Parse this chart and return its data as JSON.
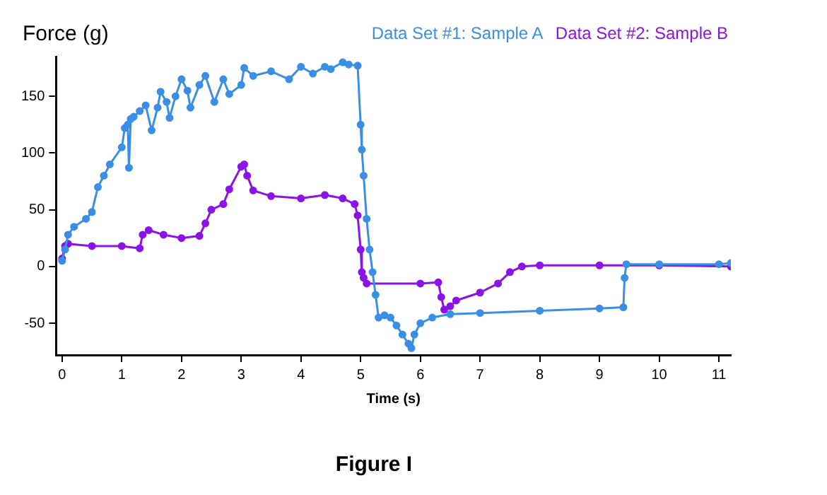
{
  "chart_data": {
    "type": "line",
    "title": "Figure I",
    "xlabel": "Time (s)",
    "ylabel": "Force (g)",
    "xlim": [
      -0.1,
      11.2
    ],
    "xticks": [
      0,
      1,
      2,
      3,
      4,
      5,
      6,
      7,
      8,
      9,
      10,
      11
    ],
    "ylim": [
      -78,
      185
    ],
    "yticks": [
      -50,
      0,
      50,
      100,
      150
    ],
    "grid": false,
    "legend": "top right",
    "marker": "circle",
    "line_style": "solid",
    "series": [
      {
        "name": "Data Set #1: Sample A",
        "color": "#3a8ee6",
        "x": [
          0,
          0.05,
          0.1,
          0.2,
          0.4,
          0.5,
          0.6,
          0.7,
          0.8,
          1.0,
          1.05,
          1.1,
          1.12,
          1.15,
          1.2,
          1.3,
          1.4,
          1.5,
          1.6,
          1.65,
          1.75,
          1.8,
          1.9,
          2.0,
          2.1,
          2.15,
          2.3,
          2.4,
          2.55,
          2.7,
          2.8,
          3.0,
          3.05,
          3.2,
          3.5,
          3.8,
          4.0,
          4.2,
          4.4,
          4.5,
          4.7,
          4.8,
          4.95,
          5.0,
          5.02,
          5.05,
          5.1,
          5.15,
          5.2,
          5.25,
          5.3,
          5.4,
          5.5,
          5.6,
          5.7,
          5.8,
          5.85,
          5.9,
          6.0,
          6.2,
          6.5,
          7.0,
          8.0,
          9.0,
          9.4,
          9.42,
          9.45,
          10.0,
          11.0,
          11.2
        ],
        "values": [
          5,
          15,
          28,
          35,
          42,
          48,
          70,
          80,
          90,
          105,
          122,
          125,
          87,
          130,
          132,
          137,
          142,
          120,
          140,
          154,
          145,
          131,
          150,
          165,
          155,
          140,
          160,
          168,
          145,
          165,
          152,
          160,
          175,
          168,
          172,
          165,
          176,
          170,
          176,
          174,
          180,
          178,
          177,
          125,
          103,
          80,
          42,
          15,
          -5,
          -25,
          -45,
          -43,
          -45,
          -52,
          -60,
          -68,
          -72,
          -60,
          -50,
          -45,
          -42,
          -41,
          -39,
          -37,
          -36,
          -10,
          2,
          2,
          2,
          3
        ]
      },
      {
        "name": "Data Set #2: Sample B",
        "color": "#8b13e8",
        "x": [
          0,
          0.05,
          0.1,
          0.5,
          1.0,
          1.3,
          1.35,
          1.45,
          1.7,
          2.0,
          2.3,
          2.4,
          2.5,
          2.7,
          2.8,
          3.0,
          3.05,
          3.1,
          3.2,
          3.5,
          4.0,
          4.4,
          4.7,
          4.9,
          4.95,
          5.0,
          5.02,
          5.05,
          5.1,
          6.0,
          6.3,
          6.35,
          6.4,
          6.5,
          6.6,
          7.0,
          7.3,
          7.5,
          7.7,
          8.0,
          9.0,
          10.0,
          11.2
        ],
        "values": [
          7,
          18,
          20,
          18,
          18,
          16,
          28,
          32,
          28,
          25,
          27,
          38,
          50,
          55,
          68,
          88,
          90,
          80,
          67,
          62,
          60,
          63,
          60,
          55,
          45,
          15,
          -5,
          -10,
          -15,
          -15,
          -14,
          -27,
          -38,
          -35,
          -30,
          -23,
          -15,
          -5,
          0,
          1,
          1,
          1,
          0
        ]
      }
    ]
  }
}
